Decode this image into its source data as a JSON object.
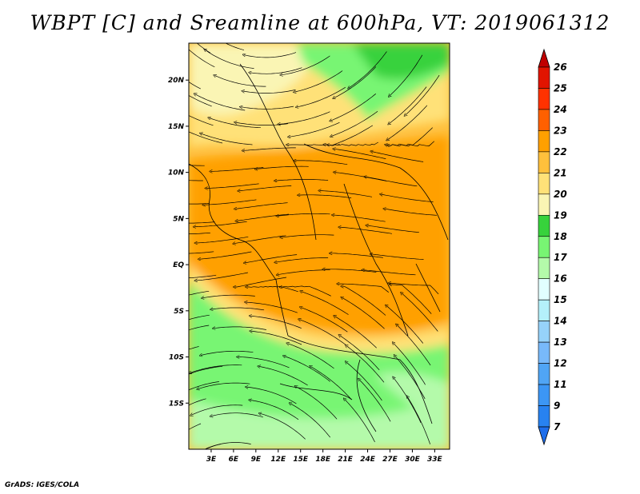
{
  "title": "WBPT [C] and Sreamline at 600hPa, VT: 2019061312",
  "credit": "GrADS: IGES/COLA",
  "map": {
    "lon_range": [
      0,
      35
    ],
    "lat_range": [
      -20,
      24
    ],
    "lon_ticks": [
      {
        "value": 3,
        "label": "3E"
      },
      {
        "value": 6,
        "label": "6E"
      },
      {
        "value": 9,
        "label": "9E"
      },
      {
        "value": 12,
        "label": "12E"
      },
      {
        "value": 15,
        "label": "15E"
      },
      {
        "value": 18,
        "label": "18E"
      },
      {
        "value": 21,
        "label": "21E"
      },
      {
        "value": 24,
        "label": "24E"
      },
      {
        "value": 27,
        "label": "27E"
      },
      {
        "value": 30,
        "label": "30E"
      },
      {
        "value": 33,
        "label": "33E"
      }
    ],
    "lat_ticks": [
      {
        "value": 20,
        "label": "20N"
      },
      {
        "value": 15,
        "label": "15N"
      },
      {
        "value": 10,
        "label": "10N"
      },
      {
        "value": 5,
        "label": "5N"
      },
      {
        "value": 0,
        "label": "EQ"
      },
      {
        "value": -5,
        "label": "5S"
      },
      {
        "value": -10,
        "label": "10S"
      },
      {
        "value": -15,
        "label": "15S"
      }
    ]
  },
  "colorbar": {
    "levels": [
      "7",
      "9",
      "11",
      "12",
      "13",
      "14",
      "15",
      "16",
      "17",
      "18",
      "19",
      "20",
      "21",
      "22",
      "23",
      "24",
      "25",
      "26"
    ],
    "colors": [
      "#1e6eeb",
      "#2882f0",
      "#3c96f5",
      "#50a5f5",
      "#78b9fa",
      "#96d2fa",
      "#b4f0fa",
      "#e1ffff",
      "#b4faaa",
      "#78f573",
      "#37d23c",
      "#faf5b4",
      "#ffe178",
      "#ffc03c",
      "#ffa000",
      "#ff6000",
      "#ff3200",
      "#e11400",
      "#c00000"
    ]
  }
}
